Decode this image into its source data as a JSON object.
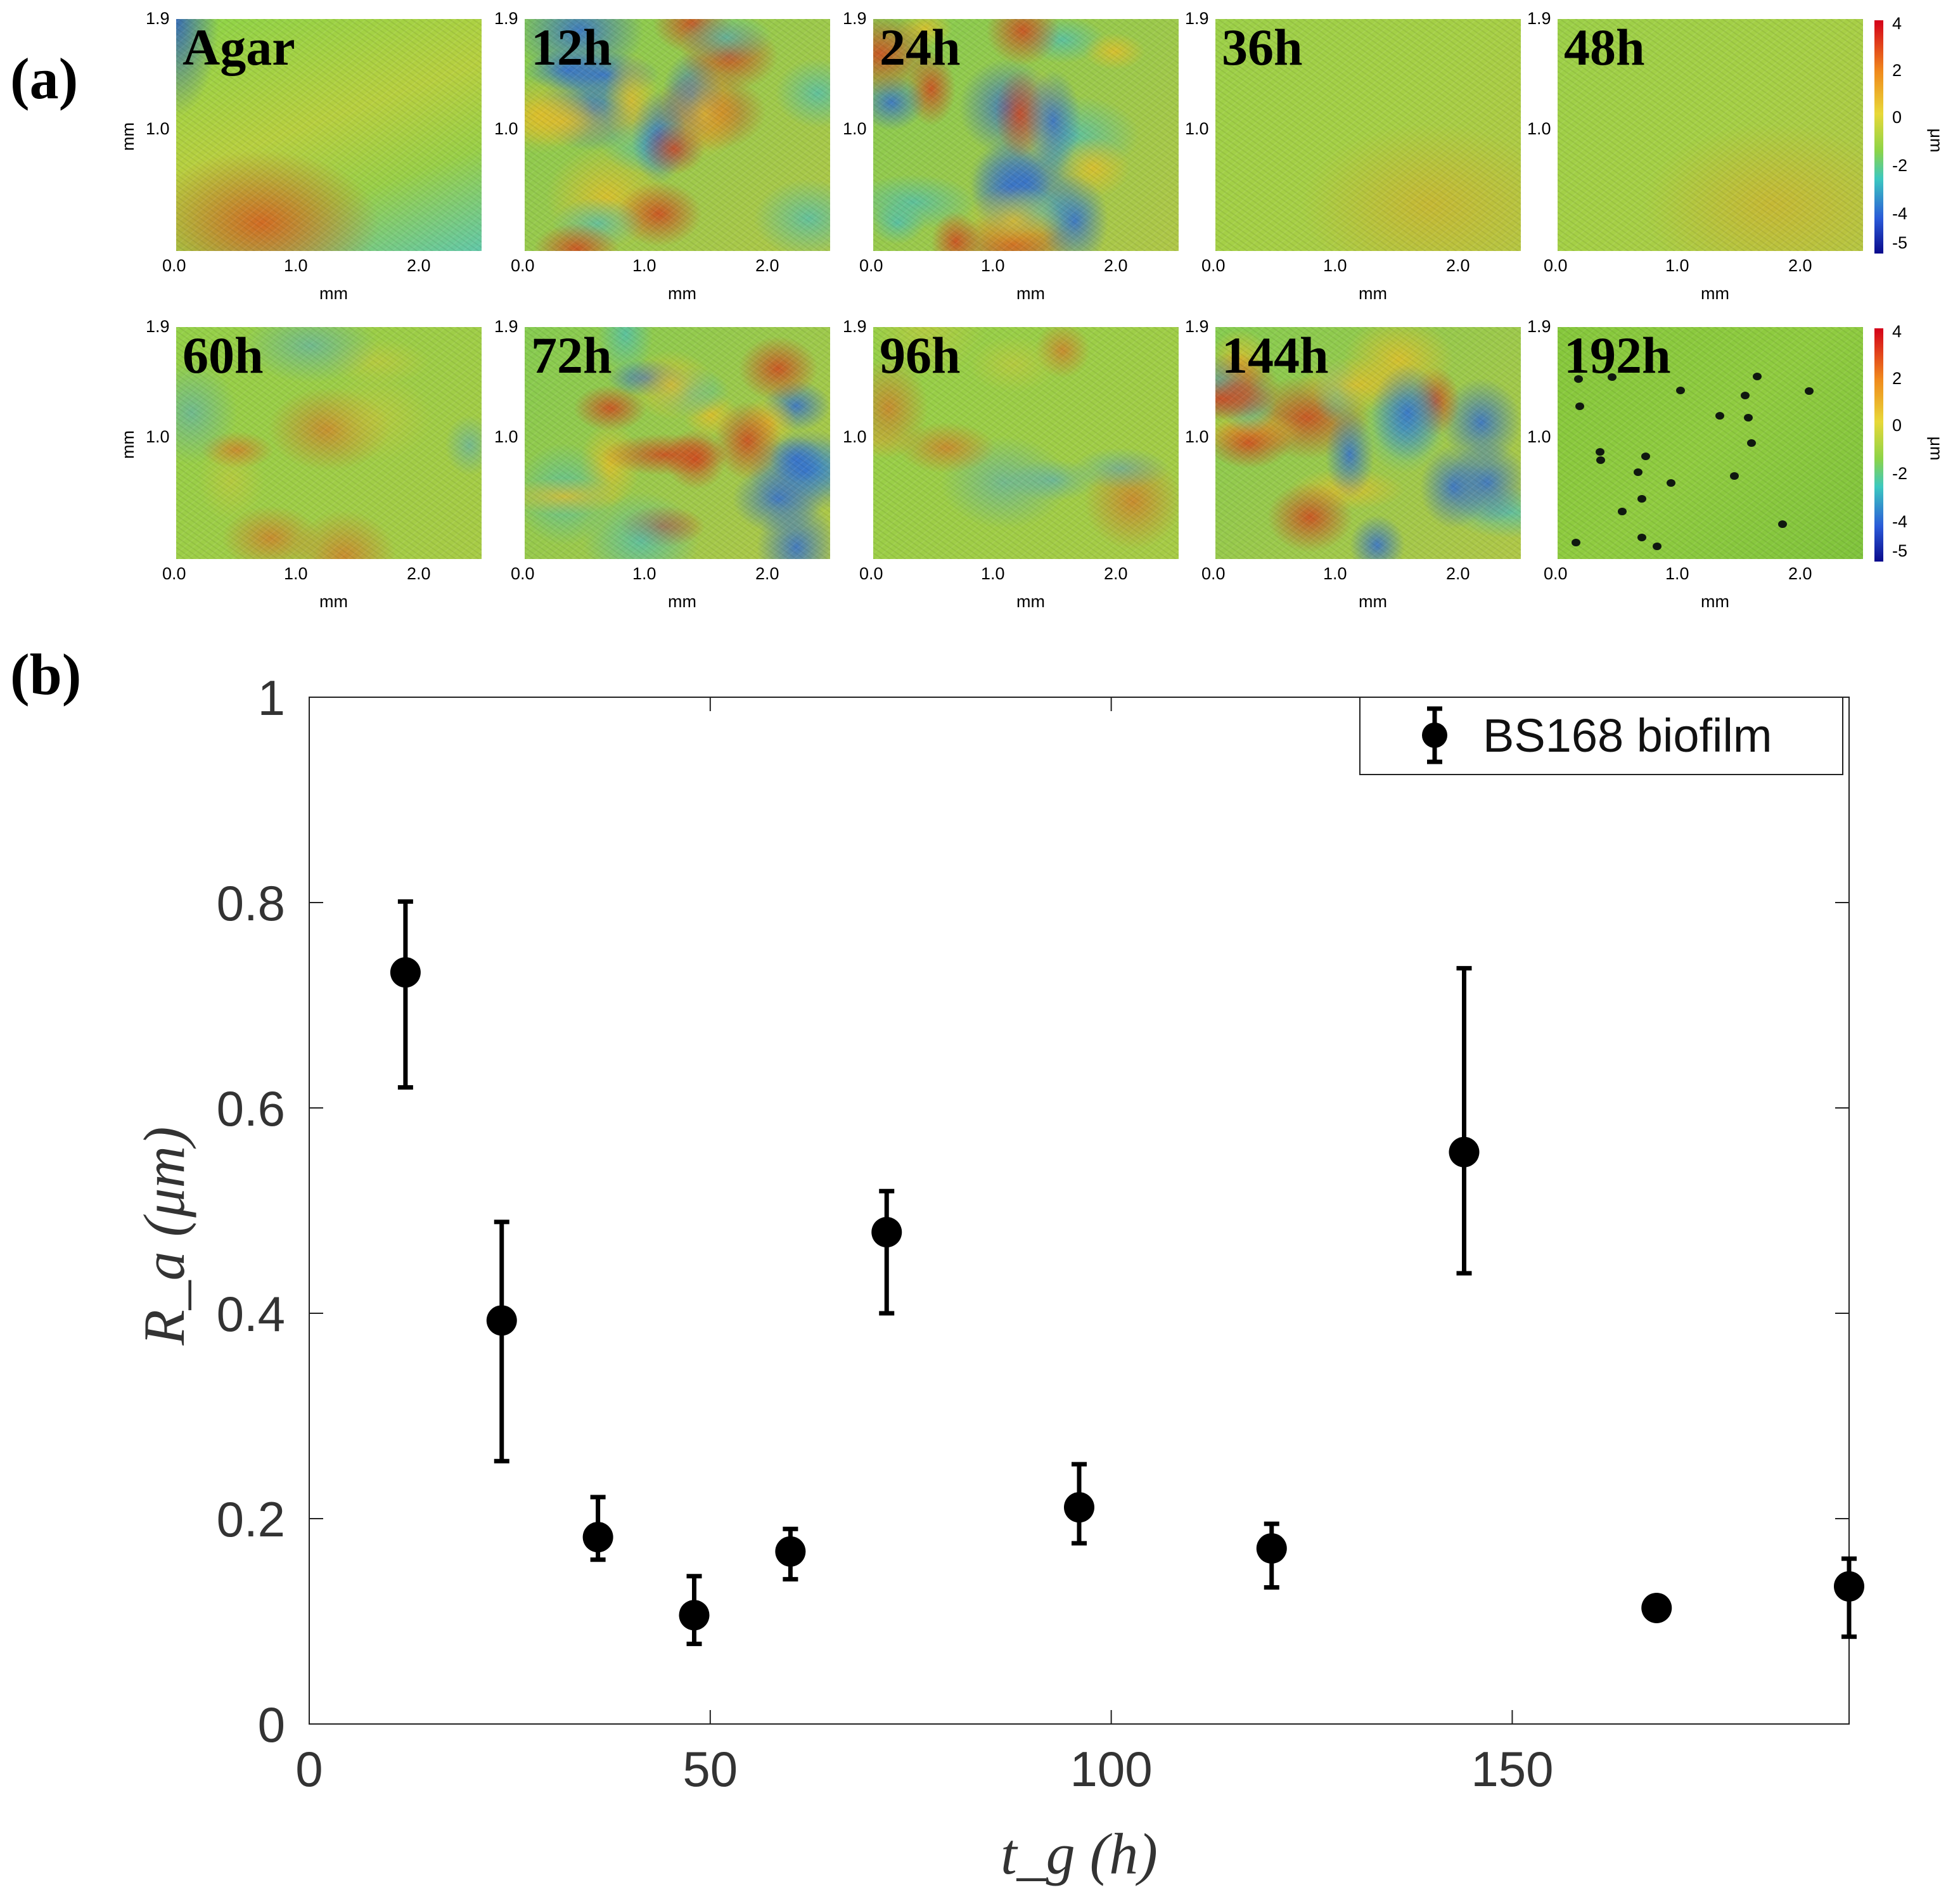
{
  "panel_labels": {
    "a": "(a)",
    "b": "(b)"
  },
  "maps": [
    {
      "label": "Agar",
      "scheme": "agar",
      "y_ticks": [
        "1.9",
        "1.0"
      ],
      "x_ticks": [
        "0.0",
        "1.0",
        "2.0"
      ],
      "x_unit": "mm",
      "y_unit": "mm"
    },
    {
      "label": "12h",
      "scheme": "rough",
      "y_ticks": [
        "1.9",
        "1.0"
      ],
      "x_ticks": [
        "0.0",
        "1.0",
        "2.0"
      ],
      "x_unit": "mm"
    },
    {
      "label": "24h",
      "scheme": "rough",
      "y_ticks": [
        "1.9",
        "1.0"
      ],
      "x_ticks": [
        "0.0",
        "1.0",
        "2.0"
      ],
      "x_unit": "mm"
    },
    {
      "label": "36h",
      "scheme": "smooth",
      "y_ticks": [
        "1.9",
        "1.0"
      ],
      "x_ticks": [
        "0.0",
        "1.0",
        "2.0"
      ],
      "x_unit": "mm"
    },
    {
      "label": "48h",
      "scheme": "smooth",
      "y_ticks": [
        "1.9",
        "1.0"
      ],
      "x_ticks": [
        "0.0",
        "1.0",
        "2.0"
      ],
      "x_unit": "mm"
    },
    {
      "label": "60h",
      "scheme": "medium",
      "y_ticks": [
        "1.9",
        "1.0"
      ],
      "x_ticks": [
        "0.0",
        "1.0",
        "2.0"
      ],
      "x_unit": "mm",
      "y_unit": "mm"
    },
    {
      "label": "72h",
      "scheme": "rough",
      "y_ticks": [
        "1.9",
        "1.0"
      ],
      "x_ticks": [
        "0.0",
        "1.0",
        "2.0"
      ],
      "x_unit": "mm"
    },
    {
      "label": "96h",
      "scheme": "medium",
      "y_ticks": [
        "1.9",
        "1.0"
      ],
      "x_ticks": [
        "0.0",
        "1.0",
        "2.0"
      ],
      "x_unit": "mm"
    },
    {
      "label": "144h",
      "scheme": "rough",
      "y_ticks": [
        "1.9",
        "1.0"
      ],
      "x_ticks": [
        "0.0",
        "1.0",
        "2.0"
      ],
      "x_unit": "mm"
    },
    {
      "label": "192h",
      "scheme": "pitted",
      "y_ticks": [
        "1.9",
        "1.0"
      ],
      "x_ticks": [
        "0.0",
        "1.0",
        "2.0"
      ],
      "x_unit": "mm"
    }
  ],
  "colorbar": {
    "ticks": [
      "4",
      "2",
      "0",
      "-2",
      "-4",
      "-5"
    ],
    "unit": "μm"
  },
  "chart_data": {
    "type": "scatter",
    "series": [
      {
        "name": "BS168 biofilm",
        "x": [
          12,
          24,
          36,
          48,
          60,
          72,
          96,
          120,
          144,
          168,
          192
        ],
        "y": [
          0.732,
          0.393,
          0.182,
          0.106,
          0.168,
          0.479,
          0.211,
          0.171,
          0.557,
          0.113,
          0.134
        ],
        "err_low": [
          0.112,
          0.137,
          0.022,
          0.028,
          0.027,
          0.079,
          0.035,
          0.038,
          0.118,
          0.0,
          0.049
        ],
        "err_high": [
          0.069,
          0.096,
          0.039,
          0.038,
          0.022,
          0.04,
          0.042,
          0.024,
          0.179,
          0.0,
          0.027
        ]
      }
    ],
    "xlabel": "t_g (h)",
    "ylabel": "R_a (μm)",
    "xlim": [
      0,
      192
    ],
    "ylim": [
      0,
      1
    ],
    "xticks": [
      0,
      50,
      100,
      150
    ],
    "yticks": [
      0,
      0.2,
      0.4,
      0.6,
      0.8,
      1
    ],
    "ytick_labels": [
      "0",
      "0.2",
      "0.4",
      "0.6",
      "0.8",
      "1"
    ],
    "legend": "BS168 biofilm",
    "legend_position": "top-right"
  }
}
